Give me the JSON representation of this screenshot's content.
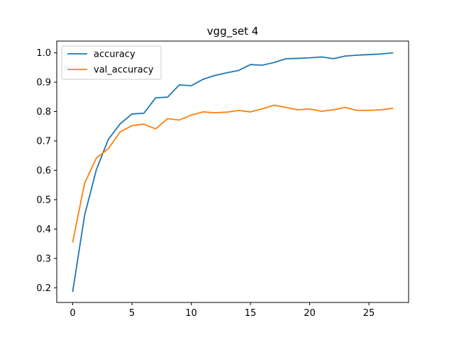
{
  "chart_data": {
    "type": "line",
    "title": "vgg_set 4",
    "xlabel": "",
    "ylabel": "",
    "xlim": [
      -1.35,
      28.35
    ],
    "ylim": [
      0.15,
      1.04
    ],
    "x_ticks": [
      0,
      5,
      10,
      15,
      20,
      25
    ],
    "y_ticks": [
      0.2,
      0.3,
      0.4,
      0.5,
      0.6,
      0.7,
      0.8,
      0.9,
      1.0
    ],
    "y_tick_labels": [
      "0.2",
      "0.3",
      "0.4",
      "0.5",
      "0.6",
      "0.7",
      "0.8",
      "0.9",
      "1.0"
    ],
    "grid": false,
    "legend": "top-left",
    "x": [
      0,
      1,
      2,
      3,
      4,
      5,
      6,
      7,
      8,
      9,
      10,
      11,
      12,
      13,
      14,
      15,
      16,
      17,
      18,
      19,
      20,
      21,
      22,
      23,
      24,
      25,
      26,
      27
    ],
    "series": [
      {
        "name": "accuracy",
        "color": "#1f77b4",
        "values": [
          0.188,
          0.447,
          0.603,
          0.705,
          0.758,
          0.792,
          0.794,
          0.847,
          0.849,
          0.891,
          0.888,
          0.91,
          0.923,
          0.932,
          0.94,
          0.96,
          0.958,
          0.967,
          0.98,
          0.981,
          0.983,
          0.986,
          0.98,
          0.989,
          0.992,
          0.994,
          0.996,
          1.0
        ]
      },
      {
        "name": "val_accuracy",
        "color": "#ff7f0e",
        "values": [
          0.356,
          0.556,
          0.642,
          0.673,
          0.731,
          0.752,
          0.757,
          0.741,
          0.776,
          0.771,
          0.788,
          0.799,
          0.796,
          0.798,
          0.804,
          0.799,
          0.809,
          0.822,
          0.814,
          0.806,
          0.809,
          0.801,
          0.806,
          0.814,
          0.804,
          0.804,
          0.806,
          0.811
        ]
      }
    ]
  }
}
